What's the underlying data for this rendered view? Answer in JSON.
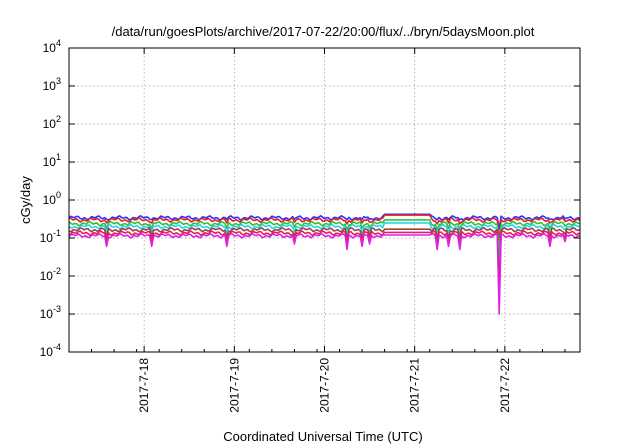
{
  "chart_data": {
    "type": "line",
    "title": "/data/run/goesPlots/archive/2017-07-22/20:00/flux/../bryn/5daysMoon.plot",
    "xlabel": "Coordinated Universal Time (UTC)",
    "ylabel": "cGy/day",
    "y_scale": "log",
    "ylim": [
      0.0001,
      10000
    ],
    "yticks": [
      {
        "mant": "10",
        "exp": "-4",
        "value": 0.0001
      },
      {
        "mant": "10",
        "exp": "-3",
        "value": 0.001
      },
      {
        "mant": "10",
        "exp": "-2",
        "value": 0.01
      },
      {
        "mant": "10",
        "exp": "-1",
        "value": 0.1
      },
      {
        "mant": "10",
        "exp": "0",
        "value": 1
      },
      {
        "mant": "10",
        "exp": "1",
        "value": 10
      },
      {
        "mant": "10",
        "exp": "2",
        "value": 100
      },
      {
        "mant": "10",
        "exp": "3",
        "value": 1000
      },
      {
        "mant": "10",
        "exp": "4",
        "value": 10000
      }
    ],
    "xlim": [
      "2017-07-17 04:00",
      "2017-07-22 20:00"
    ],
    "xticks": [
      {
        "label": "2017-7-18",
        "value": "2017-07-18 00:00"
      },
      {
        "label": "2017-7-19",
        "value": "2017-07-19 00:00"
      },
      {
        "label": "2017-7-20",
        "value": "2017-07-20 00:00"
      },
      {
        "label": "2017-7-21",
        "value": "2017-07-21 00:00"
      },
      {
        "label": "2017-7-22",
        "value": "2017-07-22 00:00"
      }
    ],
    "grid": true,
    "legend": "none",
    "gap": {
      "start": "2017-07-20 16:00",
      "end": "2017-07-21 04:00"
    },
    "series": [
      {
        "color": "#3030ff",
        "base": 0.34,
        "gap_value": 0.42
      },
      {
        "color": "#e02020",
        "base": 0.3,
        "gap_value": 0.4
      },
      {
        "color": "#30c040",
        "base": 0.24,
        "gap_value": 0.3
      },
      {
        "color": "#20d8e0",
        "base": 0.2,
        "gap_value": 0.25
      },
      {
        "color": "#a04040",
        "base": 0.165,
        "gap_value": 0.17
      },
      {
        "color": "#e02060",
        "base": 0.135,
        "gap_value": 0.14
      },
      {
        "color": "#e020e0",
        "base": 0.115,
        "gap_value": 0.12
      }
    ],
    "dips": [
      {
        "t": "2017-07-17 14:00",
        "min": 0.06
      },
      {
        "t": "2017-07-18 02:00",
        "min": 0.06
      },
      {
        "t": "2017-07-18 22:00",
        "min": 0.06
      },
      {
        "t": "2017-07-19 16:00",
        "min": 0.07
      },
      {
        "t": "2017-07-20 06:00",
        "min": 0.05
      },
      {
        "t": "2017-07-20 10:00",
        "min": 0.06
      },
      {
        "t": "2017-07-20 12:00",
        "min": 0.07
      },
      {
        "t": "2017-07-21 06:00",
        "min": 0.05
      },
      {
        "t": "2017-07-21 09:00",
        "min": 0.06
      },
      {
        "t": "2017-07-21 12:00",
        "min": 0.05
      },
      {
        "t": "2017-07-21 22:30",
        "min": 0.001
      },
      {
        "t": "2017-07-22 12:00",
        "min": 0.06
      },
      {
        "t": "2017-07-22 16:00",
        "min": 0.08
      }
    ]
  }
}
